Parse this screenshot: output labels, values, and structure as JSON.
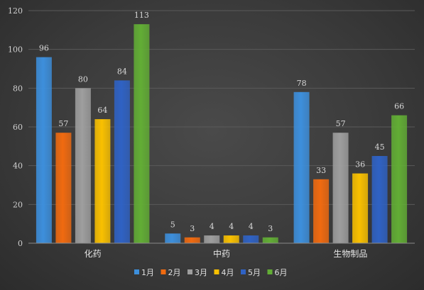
{
  "chart_data": {
    "type": "bar",
    "categories": [
      "化药",
      "中药",
      "生物制品"
    ],
    "series": [
      {
        "name": "1月",
        "values": [
          96,
          5,
          78
        ],
        "color": "#3d8fdc"
      },
      {
        "name": "2月",
        "values": [
          57,
          3,
          33
        ],
        "color": "#f06a10"
      },
      {
        "name": "3月",
        "values": [
          80,
          4,
          57
        ],
        "color": "#9e9e9e"
      },
      {
        "name": "4月",
        "values": [
          64,
          4,
          36
        ],
        "color": "#f9c000"
      },
      {
        "name": "5月",
        "values": [
          84,
          4,
          45
        ],
        "color": "#2f62c4"
      },
      {
        "name": "6月",
        "values": [
          113,
          3,
          66
        ],
        "color": "#62ad35"
      }
    ],
    "yticks": [
      "0",
      "20",
      "40",
      "60",
      "80",
      "100",
      "120"
    ],
    "ylim": [
      0,
      120
    ],
    "grid": true,
    "legend": "bottom",
    "title": "",
    "xlabel": "",
    "ylabel": ""
  }
}
